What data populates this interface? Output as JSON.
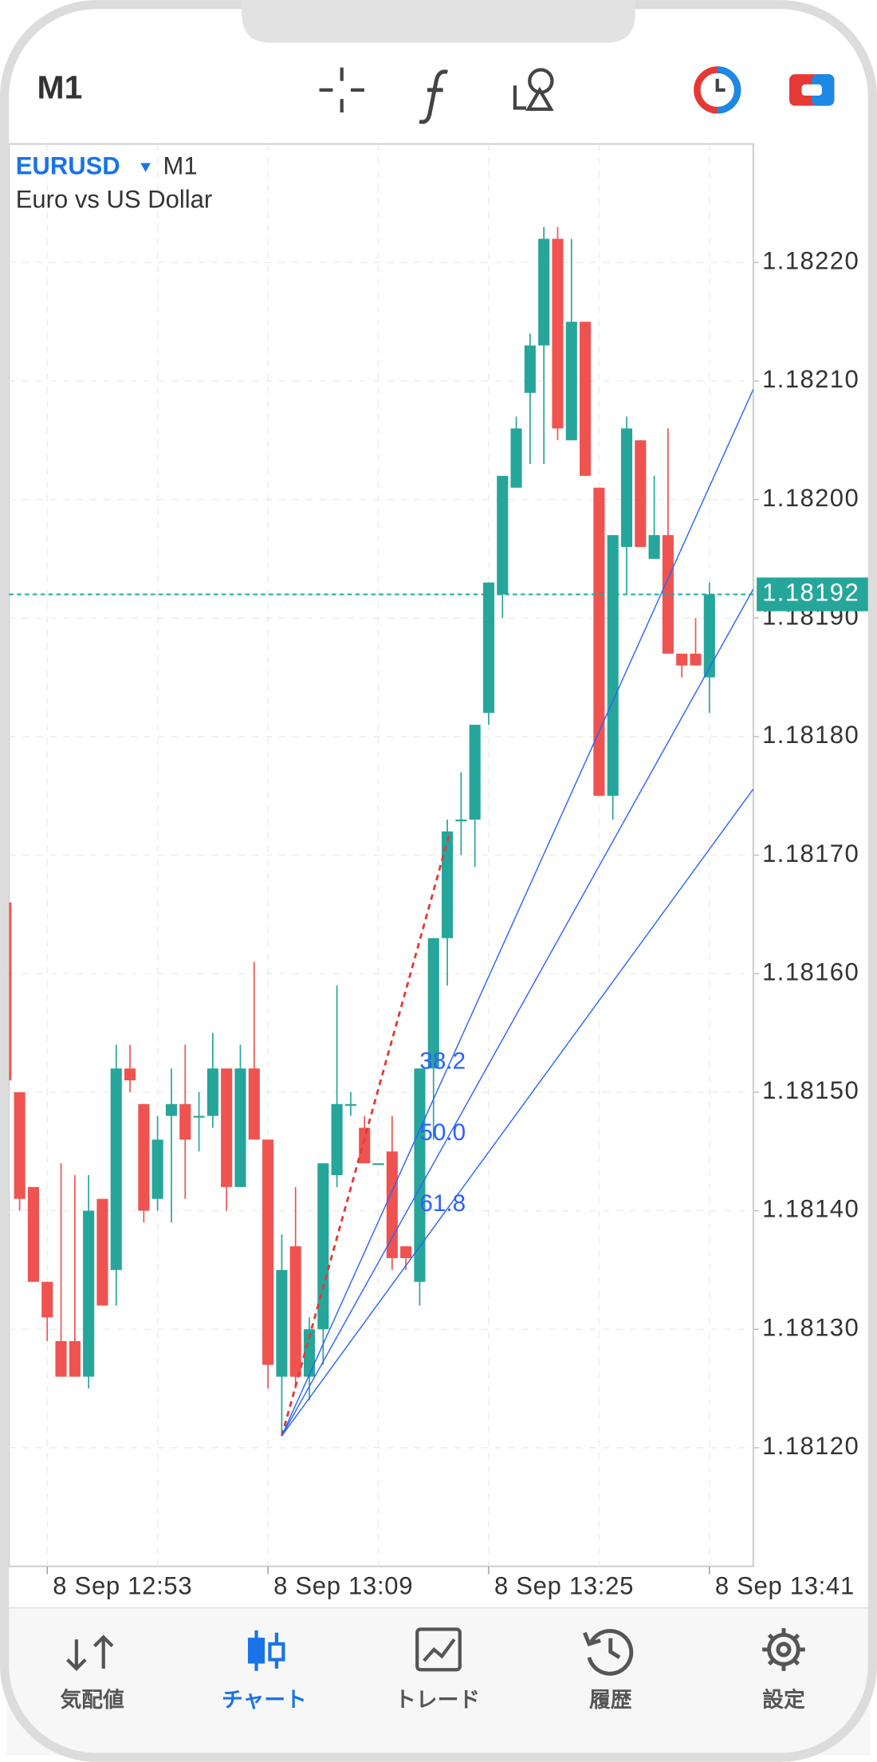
{
  "header": {
    "timeframe": "M1"
  },
  "chart_data": {
    "type": "candlestick",
    "symbol": "EURUSD",
    "timeframe": "M1",
    "description": "Euro vs US Dollar",
    "categories": [
      null,
      null,
      null,
      "8 Sep 12:53",
      null,
      null,
      null,
      null,
      null,
      null,
      null,
      null,
      null,
      null,
      null,
      null,
      null,
      null,
      null,
      "8 Sep 13:09",
      null,
      null,
      null,
      null,
      null,
      null,
      null,
      null,
      null,
      null,
      null,
      null,
      null,
      null,
      null,
      "8 Sep 13:25",
      null,
      null,
      null,
      null,
      null,
      null,
      null,
      null,
      null,
      null,
      null,
      null,
      null,
      null,
      null,
      "8 Sep 13:41"
    ],
    "open": [
      1.18166,
      1.1815,
      1.18142,
      1.18134,
      1.18129,
      1.18129,
      1.18126,
      1.18141,
      1.18135,
      1.18152,
      1.18149,
      1.18141,
      1.18148,
      1.18149,
      1.18148,
      1.18148,
      1.18152,
      1.18142,
      1.18152,
      1.18146,
      1.18126,
      1.18137,
      1.18126,
      1.1813,
      1.18143,
      1.18149,
      1.18147,
      1.18144,
      1.18145,
      1.18137,
      1.18134,
      1.18152,
      1.18163,
      1.18173,
      1.18173,
      1.18182,
      1.18192,
      1.18201,
      1.18209,
      1.18213,
      1.18222,
      1.18205,
      1.18215,
      1.18201,
      1.18175,
      1.18196,
      1.18205,
      1.18195,
      1.18197,
      1.18187,
      1.18187,
      1.18185
    ],
    "high": [
      1.18166,
      1.1815,
      1.18142,
      1.18134,
      1.18144,
      1.18143,
      1.18143,
      1.18141,
      1.18154,
      1.18154,
      1.18149,
      1.18148,
      1.18152,
      1.18154,
      1.1815,
      1.18155,
      1.18152,
      1.18154,
      1.18161,
      1.18146,
      1.18138,
      1.18142,
      1.18131,
      1.18144,
      1.18159,
      1.1815,
      1.18148,
      1.18144,
      1.18148,
      1.18137,
      1.18152,
      1.18163,
      1.18173,
      1.18177,
      1.18181,
      1.18193,
      1.18202,
      1.18207,
      1.18214,
      1.18223,
      1.18223,
      1.18222,
      1.18215,
      1.18201,
      1.18197,
      1.18207,
      1.18205,
      1.18202,
      1.18206,
      1.18187,
      1.1819,
      1.18193
    ],
    "low": [
      1.18151,
      1.1814,
      1.18134,
      1.18129,
      1.18126,
      1.18126,
      1.18125,
      1.18132,
      1.18132,
      1.1815,
      1.18139,
      1.1814,
      1.18139,
      1.18141,
      1.18145,
      1.18147,
      1.1814,
      1.18142,
      1.18146,
      1.18125,
      1.18121,
      1.18125,
      1.18124,
      1.18127,
      1.18142,
      1.18148,
      1.18144,
      1.18144,
      1.18135,
      1.18135,
      1.18132,
      1.18146,
      1.18159,
      1.1817,
      1.18169,
      1.18181,
      1.1819,
      1.18201,
      1.18203,
      1.18203,
      1.18205,
      1.18205,
      1.18202,
      1.18175,
      1.18173,
      1.18192,
      1.18196,
      1.18195,
      1.18187,
      1.18185,
      1.18186,
      1.18182
    ],
    "close": [
      1.18151,
      1.18141,
      1.18134,
      1.18131,
      1.18126,
      1.18126,
      1.1814,
      1.18132,
      1.18152,
      1.18151,
      1.1814,
      1.18146,
      1.18149,
      1.18146,
      1.18148,
      1.18152,
      1.18142,
      1.18152,
      1.18146,
      1.18127,
      1.18135,
      1.18126,
      1.1813,
      1.18144,
      1.18149,
      1.18149,
      1.18144,
      1.18144,
      1.18136,
      1.18136,
      1.18152,
      1.18163,
      1.18172,
      1.18173,
      1.18181,
      1.18193,
      1.18202,
      1.18206,
      1.18213,
      1.18222,
      1.18206,
      1.18215,
      1.18202,
      1.18175,
      1.18197,
      1.18206,
      1.18196,
      1.18197,
      1.18187,
      1.18186,
      1.18186,
      1.18192
    ],
    "up_color": "#26a69a",
    "down_color": "#ef5350",
    "ylim": [
      1.1811,
      1.1823
    ],
    "yticks": [
      {
        "value": 1.1812,
        "label": "1.18120"
      },
      {
        "value": 1.1813,
        "label": "1.18130"
      },
      {
        "value": 1.1814,
        "label": "1.18140"
      },
      {
        "value": 1.1815,
        "label": "1.18150"
      },
      {
        "value": 1.1816,
        "label": "1.18160"
      },
      {
        "value": 1.1817,
        "label": "1.18170"
      },
      {
        "value": 1.1818,
        "label": "1.18180"
      },
      {
        "value": 1.1819,
        "label": "1.18190"
      },
      {
        "value": 1.182,
        "label": "1.18200"
      },
      {
        "value": 1.1821,
        "label": "1.18210"
      },
      {
        "value": 1.1822,
        "label": "1.18220"
      }
    ],
    "grid": true,
    "last_price": 1.18192,
    "last_price_color": "#26a69a",
    "fibo_fan": {
      "low": 1.18121,
      "high": 1.18172,
      "levels": [
        38.2,
        {
          "value": 50,
          "label": "50.0"
        },
        61.8
      ],
      "trend_color": "#e53935",
      "fan_color": "#2962ff"
    }
  },
  "tabs": [
    "気配値",
    "チャート",
    "トレード",
    "履歴",
    "設定"
  ]
}
